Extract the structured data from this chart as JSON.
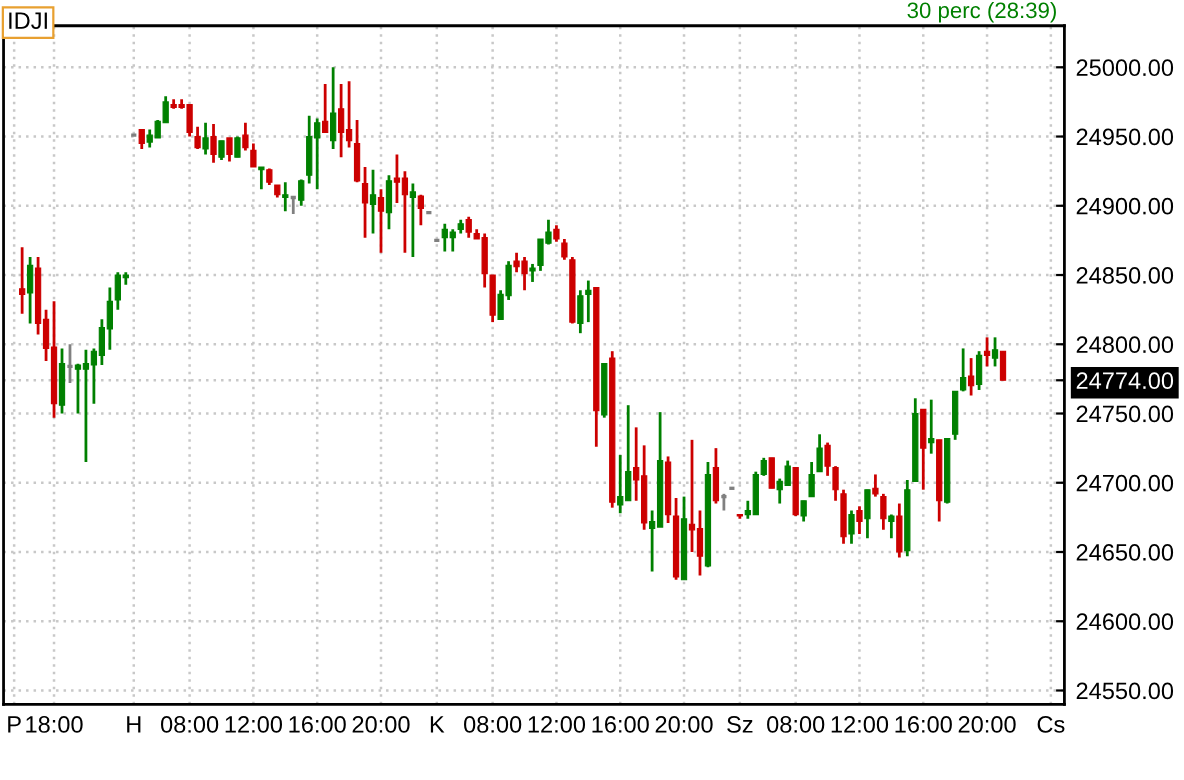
{
  "chart_data": {
    "type": "candlestick",
    "title": "IDJI",
    "subtitle": "30 perc (28:39)",
    "categories": [
      "P",
      null,
      null,
      null,
      null,
      "18:00",
      null,
      null,
      null,
      null,
      null,
      null,
      null,
      null,
      null,
      "H",
      null,
      null,
      null,
      null,
      null,
      null,
      "08:00",
      null,
      null,
      null,
      null,
      null,
      null,
      null,
      "12:00",
      null,
      null,
      null,
      null,
      null,
      null,
      null,
      "16:00",
      null,
      null,
      null,
      null,
      null,
      null,
      null,
      "20:00",
      null,
      null,
      null,
      null,
      null,
      null,
      "K",
      null,
      null,
      null,
      null,
      null,
      null,
      "08:00",
      null,
      null,
      null,
      null,
      null,
      null,
      null,
      "12:00",
      null,
      null,
      null,
      null,
      null,
      null,
      null,
      "16:00",
      null,
      null,
      null,
      null,
      null,
      null,
      null,
      "20:00",
      null,
      null,
      null,
      null,
      null,
      null,
      "Sz",
      null,
      null,
      null,
      null,
      null,
      null,
      "08:00",
      null,
      null,
      null,
      null,
      null,
      null,
      null,
      "12:00",
      null,
      null,
      null,
      null,
      null,
      null,
      null,
      "16:00",
      null,
      null,
      null,
      null,
      null,
      null,
      null,
      "20:00",
      null,
      null,
      null,
      null,
      null,
      null,
      null,
      "Cs"
    ],
    "ohlc": [
      null,
      [
        24840,
        24870,
        24822,
        24836
      ],
      [
        24837,
        24863,
        24815,
        24857
      ],
      [
        24855,
        24863,
        24807,
        24815
      ],
      [
        24818,
        24825,
        24788,
        24797
      ],
      [
        24798,
        24831,
        24747,
        24757
      ],
      [
        24756,
        24797,
        24750,
        24786
      ],
      [
        24784,
        24800,
        24772,
        24784
      ],
      [
        24782,
        24786,
        24750,
        24785
      ],
      [
        24782,
        24796,
        24715,
        24786
      ],
      [
        24785,
        24797,
        24757,
        24795
      ],
      [
        24792,
        24818,
        24785,
        24812
      ],
      [
        24811,
        24841,
        24796,
        24831
      ],
      [
        24832,
        24852,
        24825,
        24850
      ],
      [
        24848,
        24852,
        24843,
        24850
      ],
      [
        24951,
        24951,
        24951,
        24951
      ],
      [
        24955,
        24955,
        24941,
        24945
      ],
      [
        24946,
        24955,
        24942,
        24951
      ],
      [
        24949,
        24962,
        24949,
        24961
      ],
      [
        24960,
        24979,
        24960,
        24975
      ],
      [
        24973,
        24977,
        24970,
        24971
      ],
      [
        24973,
        24977,
        24970,
        24971
      ],
      [
        24973,
        24973,
        24950,
        24953
      ],
      [
        24950,
        24957,
        24941,
        24942
      ],
      [
        24941,
        24960,
        24937,
        24949
      ],
      [
        24950,
        24959,
        24931,
        24937
      ],
      [
        24935,
        24947,
        24933,
        24947
      ],
      [
        24949,
        24949,
        24932,
        24937
      ],
      [
        24935,
        24950,
        24935,
        24949
      ],
      [
        24951,
        24960,
        24940,
        24942
      ],
      [
        24940,
        24945,
        24928,
        24928
      ],
      [
        24926,
        24928,
        24912,
        24928
      ],
      [
        24926,
        24927,
        24915,
        24917
      ],
      [
        24915,
        24915,
        24906,
        24908
      ],
      [
        24906,
        24917,
        24896,
        24908
      ],
      [
        24906,
        24907,
        24894,
        24906
      ],
      [
        24904,
        24919,
        24900,
        24918
      ],
      [
        24922,
        24965,
        24916,
        24950
      ],
      [
        24949,
        24963,
        24912,
        24960
      ],
      [
        24961,
        24988,
        24953,
        24953
      ],
      [
        24947,
        25000,
        24941,
        24967
      ],
      [
        24970,
        24988,
        24935,
        24953
      ],
      [
        24955,
        24990,
        24942,
        24947
      ],
      [
        24945,
        24962,
        24917,
        24918
      ],
      [
        24916,
        24928,
        24877,
        24902
      ],
      [
        24901,
        24926,
        24880,
        24908
      ],
      [
        24906,
        24912,
        24866,
        24896
      ],
      [
        24895,
        24922,
        24883,
        24918
      ],
      [
        24920,
        24937,
        24902,
        24917
      ],
      [
        24920,
        24925,
        24866,
        24908
      ],
      [
        24906,
        24916,
        24863,
        24910
      ],
      [
        24907,
        24908,
        24886,
        24898
      ],
      [
        24895,
        24895,
        24895,
        24895
      ],
      [
        24875,
        24875,
        24875,
        24875
      ],
      [
        24877,
        24887,
        24867,
        24883
      ],
      [
        24877,
        24883,
        24867,
        24881
      ],
      [
        24883,
        24890,
        24880,
        24887
      ],
      [
        24890,
        24892,
        24877,
        24881
      ],
      [
        24880,
        24883,
        24876,
        24876
      ],
      [
        24877,
        24880,
        24841,
        24851
      ],
      [
        24850,
        24850,
        24816,
        24821
      ],
      [
        24818,
        24839,
        24818,
        24836
      ],
      [
        24835,
        24860,
        24832,
        24857
      ],
      [
        24860,
        24866,
        24852,
        24856
      ],
      [
        24860,
        24863,
        24839,
        24851
      ],
      [
        24853,
        24858,
        24845,
        24855
      ],
      [
        24857,
        24876,
        24853,
        24876
      ],
      [
        24873,
        24890,
        24872,
        24881
      ],
      [
        24883,
        24886,
        24874,
        24876
      ],
      [
        24873,
        24876,
        24861,
        24863
      ],
      [
        24861,
        24863,
        24815,
        24816
      ],
      [
        24815,
        24839,
        24808,
        24835
      ],
      [
        24836,
        24846,
        24816,
        24839
      ],
      [
        24841,
        24841,
        24726,
        24752
      ],
      [
        24749,
        24786,
        24747,
        24786
      ],
      [
        24790,
        24795,
        24682,
        24686
      ],
      [
        24684,
        24720,
        24678,
        24690
      ],
      [
        24687,
        24756,
        24687,
        24708
      ],
      [
        24711,
        24740,
        24687,
        24702
      ],
      [
        24705,
        24727,
        24666,
        24671
      ],
      [
        24667,
        24680,
        24636,
        24672
      ],
      [
        24668,
        24751,
        24668,
        24716
      ],
      [
        24715,
        24719,
        24671,
        24677
      ],
      [
        24676,
        24689,
        24630,
        24632
      ],
      [
        24630,
        24690,
        24630,
        24674
      ],
      [
        24670,
        24731,
        24650,
        24666
      ],
      [
        24667,
        24680,
        24633,
        24647
      ],
      [
        24640,
        24715,
        24639,
        24706
      ],
      [
        24711,
        24725,
        24685,
        24687
      ],
      [
        24690,
        24692,
        24680,
        24690
      ],
      [
        24696,
        24696,
        24696,
        24696
      ],
      [
        24677,
        24677,
        24674,
        24676
      ],
      [
        24677,
        24687,
        24674,
        24680
      ],
      [
        24677,
        24708,
        24677,
        24706
      ],
      [
        24706,
        24718,
        24705,
        24716
      ],
      [
        24718,
        24718,
        24696,
        24696
      ],
      [
        24695,
        24703,
        24685,
        24701
      ],
      [
        24698,
        24716,
        24698,
        24712
      ],
      [
        24711,
        24711,
        24676,
        24677
      ],
      [
        24676,
        24687,
        24672,
        24687
      ],
      [
        24690,
        24715,
        24690,
        24706
      ],
      [
        24708,
        24735,
        24708,
        24725
      ],
      [
        24727,
        24729,
        24705,
        24712
      ],
      [
        24711,
        24712,
        24687,
        24695
      ],
      [
        24692,
        24695,
        24656,
        24661
      ],
      [
        24663,
        24680,
        24656,
        24677
      ],
      [
        24680,
        24683,
        24663,
        24672
      ],
      [
        24674,
        24695,
        24660,
        24695
      ],
      [
        24696,
        24706,
        24690,
        24692
      ],
      [
        24690,
        24692,
        24666,
        24674
      ],
      [
        24672,
        24677,
        24660,
        24676
      ],
      [
        24676,
        24685,
        24646,
        24650
      ],
      [
        24651,
        24702,
        24647,
        24695
      ],
      [
        24701,
        24761,
        24701,
        24750
      ],
      [
        24753,
        24753,
        24695,
        24725
      ],
      [
        24729,
        24760,
        24721,
        24732
      ],
      [
        24731,
        24731,
        24672,
        24687
      ],
      [
        24686,
        24732,
        24685,
        24732
      ],
      [
        24735,
        24766,
        24731,
        24766
      ],
      [
        24767,
        24797,
        24766,
        24776
      ],
      [
        24777,
        24790,
        24763,
        24770
      ],
      [
        24771,
        24795,
        24767,
        24792
      ],
      [
        24795,
        24805,
        24784,
        24792
      ],
      [
        24790,
        24805,
        24784,
        24796
      ],
      [
        24795,
        24795,
        24774,
        24774
      ],
      null,
      null,
      null,
      null,
      null,
      null
    ],
    "colors": [
      null,
      "#cc0000",
      "#008000",
      "#cc0000",
      "#cc0000",
      "#cc0000",
      "#008000",
      "#808080",
      "#008000",
      "#008000",
      "#008000",
      "#008000",
      "#008000",
      "#008000",
      "#008000",
      "#808080",
      "#cc0000",
      "#008000",
      "#008000",
      "#008000",
      "#cc0000",
      "#cc0000",
      "#cc0000",
      "#cc0000",
      "#008000",
      "#cc0000",
      "#008000",
      "#cc0000",
      "#008000",
      "#cc0000",
      "#cc0000",
      "#008000",
      "#cc0000",
      "#cc0000",
      "#008000",
      "#808080",
      "#008000",
      "#008000",
      "#008000",
      "#cc0000",
      "#008000",
      "#cc0000",
      "#cc0000",
      "#cc0000",
      "#cc0000",
      "#008000",
      "#cc0000",
      "#008000",
      "#cc0000",
      "#cc0000",
      "#008000",
      "#cc0000",
      "#808080",
      "#808080",
      "#008000",
      "#008000",
      "#008000",
      "#cc0000",
      "#cc0000",
      "#cc0000",
      "#cc0000",
      "#008000",
      "#008000",
      "#cc0000",
      "#cc0000",
      "#008000",
      "#008000",
      "#008000",
      "#cc0000",
      "#cc0000",
      "#cc0000",
      "#008000",
      "#008000",
      "#cc0000",
      "#008000",
      "#cc0000",
      "#008000",
      "#008000",
      "#cc0000",
      "#cc0000",
      "#008000",
      "#008000",
      "#cc0000",
      "#cc0000",
      "#008000",
      "#cc0000",
      "#cc0000",
      "#008000",
      "#cc0000",
      "#808080",
      "#808080",
      "#cc0000",
      "#008000",
      "#008000",
      "#008000",
      "#cc0000",
      "#008000",
      "#008000",
      "#cc0000",
      "#008000",
      "#008000",
      "#008000",
      "#cc0000",
      "#cc0000",
      "#cc0000",
      "#008000",
      "#cc0000",
      "#008000",
      "#cc0000",
      "#cc0000",
      "#008000",
      "#cc0000",
      "#008000",
      "#008000",
      "#cc0000",
      "#008000",
      "#cc0000",
      "#008000",
      "#008000",
      "#008000",
      "#cc0000",
      "#008000",
      "#cc0000",
      "#008000",
      "#cc0000",
      null,
      null,
      null,
      null,
      null,
      null
    ],
    "ylim": [
      24540,
      25030
    ],
    "yticks": [
      {
        "value": 24550,
        "label": "24550.00"
      },
      {
        "value": 24600,
        "label": "24600.00"
      },
      {
        "value": 24650,
        "label": "24650.00"
      },
      {
        "value": 24700,
        "label": "24700.00"
      },
      {
        "value": 24750,
        "label": "24750.00"
      },
      {
        "value": 24774,
        "label": "24774.00"
      },
      {
        "value": 24800,
        "label": "24800.00"
      },
      {
        "value": 24850,
        "label": "24850.00"
      },
      {
        "value": 24900,
        "label": "24900.00"
      },
      {
        "value": 24950,
        "label": "24950.00"
      },
      {
        "value": 25000,
        "label": "25000.00"
      }
    ],
    "grid": true
  }
}
